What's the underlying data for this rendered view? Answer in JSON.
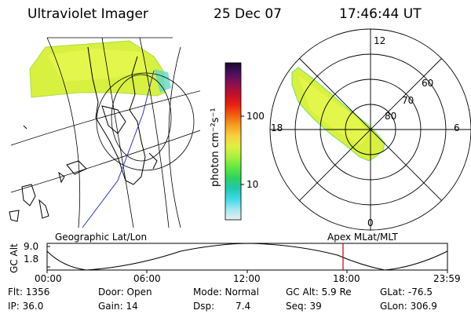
{
  "header": {
    "instrument": "Ultraviolet Imager",
    "date": "25 Dec 07",
    "time": "17:46:44 UT"
  },
  "colorbar": {
    "unit": "photon cm⁻²s⁻¹",
    "ticks": [
      "100",
      "10"
    ],
    "stops": [
      "#1a0a2e",
      "#4b1060",
      "#8a1050",
      "#c0102a",
      "#e82010",
      "#f06010",
      "#f5a020",
      "#f8d040",
      "#e0f040",
      "#a8f040",
      "#60e840",
      "#30d060",
      "#20c8b0",
      "#40d8e8",
      "#a0e8f0",
      "#e8f0f0"
    ]
  },
  "polar_plot": {
    "mlt_labels": [
      "12",
      "18",
      "6",
      "0"
    ],
    "mlat_labels": [
      "60",
      "70",
      "80"
    ]
  },
  "orbit_plot": {
    "left_title": "Geographic Lat/Lon",
    "right_title": "Apex MLat/MLT",
    "ylabel": "GC Alt",
    "y_ticks": [
      "9.0",
      "1.8"
    ],
    "x_ticks": [
      "00:00",
      "06:00",
      "12:00",
      "18:00",
      "23:59"
    ],
    "marker_color": "#d00000"
  },
  "footer": {
    "flt": "Flt: 1356",
    "ip": "IP: 36.0",
    "door": "Door: Open",
    "gain": "Gain: 14",
    "mode": "Mode: Normal",
    "dsp_label": "Dsp:",
    "dsp_value": "7.4",
    "gcalt": "GC Alt: 5.9 Re",
    "seq": "Seq: 39",
    "glat": "GLat: -76.5",
    "glon": "GLon: 306.9"
  }
}
